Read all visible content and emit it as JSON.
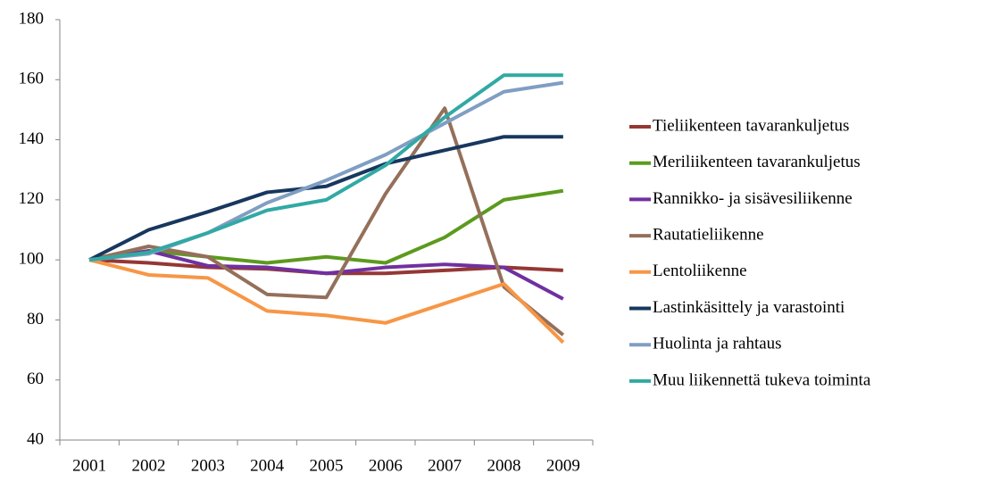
{
  "chart_data": {
    "type": "line",
    "categories": [
      "2001",
      "2002",
      "2003",
      "2004",
      "2005",
      "2006",
      "2007",
      "2008",
      "2009"
    ],
    "ylim": [
      40,
      180
    ],
    "yticks": [
      40,
      60,
      80,
      100,
      120,
      140,
      160,
      180
    ],
    "grid": false,
    "legend": "right",
    "series": [
      {
        "name": "Tieliikenteen tavarankuljetus",
        "color": "#953735",
        "values": [
          100,
          99,
          97.5,
          97,
          95.5,
          95.5,
          96.5,
          97.5,
          96.5
        ]
      },
      {
        "name": "Meriliikenteen tavarankuljetus",
        "color": "#5C9A1E",
        "values": [
          100,
          103,
          101,
          99,
          101,
          99,
          107.5,
          120,
          123
        ]
      },
      {
        "name": "Rannikko- ja sisävesiliikenne",
        "color": "#7030A0",
        "values": [
          100,
          103,
          98,
          97.5,
          95.5,
          97.5,
          98.5,
          97.5,
          87
        ]
      },
      {
        "name": "Rautatieliikenne",
        "color": "#94705A",
        "values": [
          100,
          104.5,
          101,
          88.5,
          87.5,
          122,
          150.5,
          91,
          75
        ]
      },
      {
        "name": "Lentoliikenne",
        "color": "#F79646",
        "values": [
          100,
          95,
          94,
          83,
          81.5,
          79,
          85.5,
          92,
          72.5
        ]
      },
      {
        "name": "Lastinkäsittely ja varastointi",
        "color": "#17375E",
        "values": [
          100,
          110,
          116,
          122.5,
          124.5,
          132,
          136.5,
          141,
          141
        ]
      },
      {
        "name": "Huolinta ja rahtaus",
        "color": "#809EC2",
        "values": [
          100,
          102,
          109,
          119,
          126.5,
          135,
          145.5,
          156,
          159
        ]
      },
      {
        "name": "Muu liikennettä tukeva toiminta",
        "color": "#31A9A4",
        "values": [
          100,
          102.5,
          109,
          116.5,
          120,
          131.5,
          147.5,
          161.5,
          161.5
        ]
      }
    ]
  }
}
